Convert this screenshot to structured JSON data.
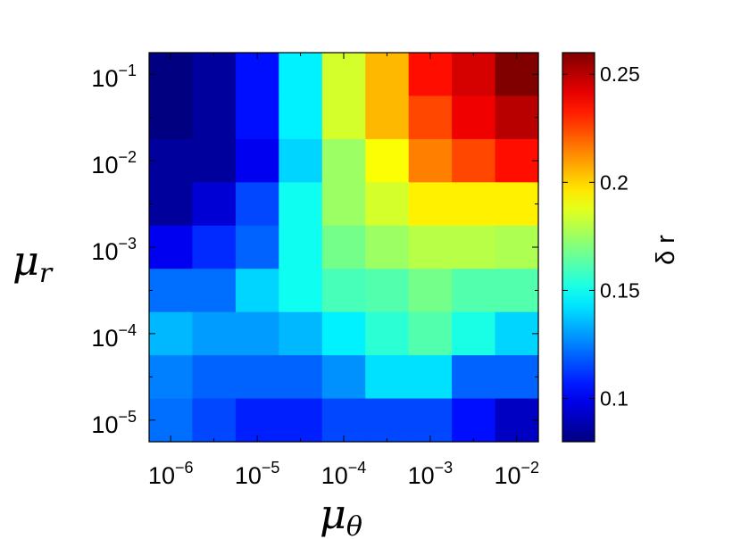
{
  "chart_data": {
    "type": "heatmap",
    "title": "",
    "xlabel": {
      "base": "μ",
      "sub": "θ"
    },
    "ylabel": {
      "base": "μ",
      "sub": "r"
    },
    "x_log10_range": [
      -6.25,
      -1.75
    ],
    "y_log10_range": [
      -5.25,
      -0.75
    ],
    "columns_log10_center": [
      -6.0,
      -5.5,
      -5.0,
      -4.5,
      -4.0,
      -3.5,
      -3.0,
      -2.5,
      -2.0
    ],
    "rows_log10_center": [
      -1.0,
      -1.5,
      -2.0,
      -2.5,
      -3.0,
      -3.5,
      -4.0,
      -4.5,
      -5.0
    ],
    "x_ticks": [
      {
        "base": "10",
        "exp": "−6",
        "log10": -6
      },
      {
        "base": "10",
        "exp": "−5",
        "log10": -5
      },
      {
        "base": "10",
        "exp": "−4",
        "log10": -4
      },
      {
        "base": "10",
        "exp": "−3",
        "log10": -3
      },
      {
        "base": "10",
        "exp": "−2",
        "log10": -2
      }
    ],
    "y_ticks": [
      {
        "base": "10",
        "exp": "−1",
        "log10": -1
      },
      {
        "base": "10",
        "exp": "−2",
        "log10": -2
      },
      {
        "base": "10",
        "exp": "−3",
        "log10": -3
      },
      {
        "base": "10",
        "exp": "−4",
        "log10": -4
      },
      {
        "base": "10",
        "exp": "−5",
        "log10": -5
      }
    ],
    "values": [
      [
        0.08,
        0.085,
        0.105,
        0.145,
        0.185,
        0.205,
        0.235,
        0.245,
        0.262
      ],
      [
        0.08,
        0.085,
        0.105,
        0.145,
        0.185,
        0.205,
        0.225,
        0.24,
        0.25
      ],
      [
        0.085,
        0.085,
        0.1,
        0.14,
        0.175,
        0.192,
        0.215,
        0.225,
        0.235
      ],
      [
        0.085,
        0.095,
        0.115,
        0.15,
        0.175,
        0.185,
        0.195,
        0.195,
        0.195
      ],
      [
        0.1,
        0.11,
        0.12,
        0.15,
        0.168,
        0.175,
        0.18,
        0.18,
        0.178
      ],
      [
        0.122,
        0.122,
        0.14,
        0.15,
        0.16,
        0.162,
        0.168,
        0.162,
        0.162
      ],
      [
        0.135,
        0.13,
        0.13,
        0.135,
        0.145,
        0.155,
        0.162,
        0.152,
        0.14
      ],
      [
        0.125,
        0.12,
        0.12,
        0.12,
        0.128,
        0.142,
        0.142,
        0.12,
        0.12
      ],
      [
        0.122,
        0.115,
        0.108,
        0.108,
        0.115,
        0.115,
        0.115,
        0.105,
        0.092
      ]
    ],
    "colorscale": "jet",
    "colorbar": {
      "label": "δ r",
      "range": [
        0.08,
        0.26
      ],
      "ticks": [
        {
          "label": "0.1",
          "value": 0.1
        },
        {
          "label": "0.15",
          "value": 0.15
        },
        {
          "label": "0.2",
          "value": 0.2
        },
        {
          "label": "0.25",
          "value": 0.25
        }
      ]
    },
    "grid": false,
    "legend": "colorbar-right"
  }
}
